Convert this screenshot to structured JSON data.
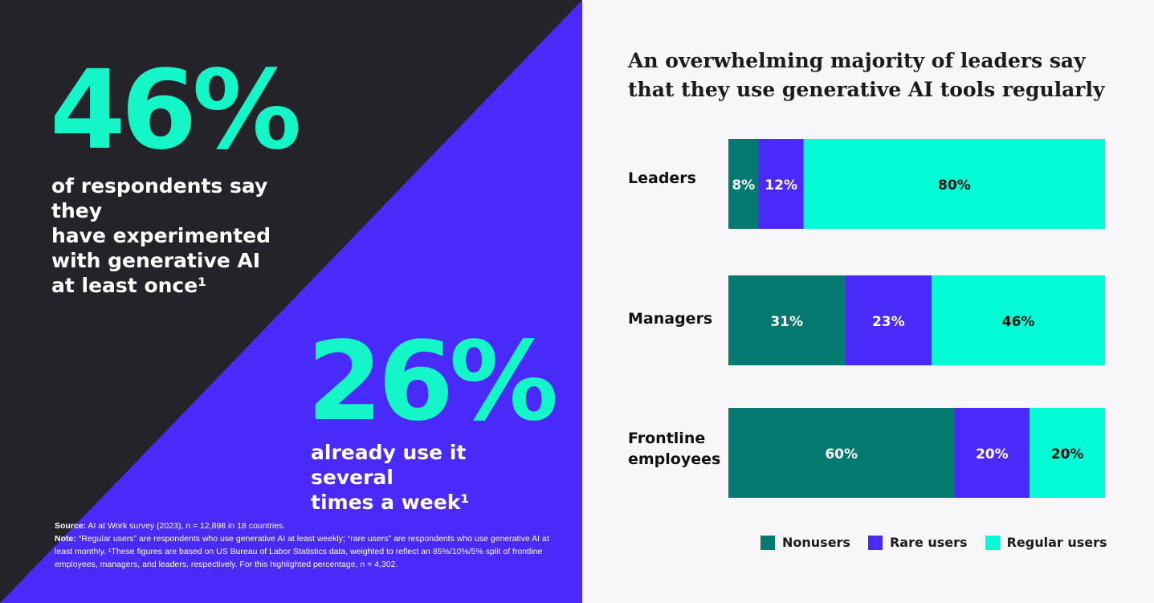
{
  "left": {
    "stat1": {
      "value": "46%",
      "text_lines": [
        "of respondents say they",
        "have experimented",
        "with generative AI",
        "at least once¹"
      ]
    },
    "stat2": {
      "value": "26%",
      "text_lines": [
        "already use it several",
        "times a week¹"
      ]
    },
    "footnote": {
      "source_label": "Source:",
      "source_text": " AI at Work survey (2023), n = 12,898 in 18 countries.",
      "note_label": "Note:",
      "note_text": "  “Regular users” are respondents who use generative AI at least weekly; “rare users” are respondents who use generative AI at least monthly. ¹These figures are based on US Bureau of Labor Statistics data, weighted to reflect an 85%/10%/5% split of frontline employees, managers, and leaders, respectively. For this highlighted percentage, n = 4,302."
    }
  },
  "colors": {
    "dark_bg": "#242329",
    "purple": "#4a2afb",
    "teal": "#03796f",
    "mint": "#03fcd5",
    "light_bg": "#f7f7f9"
  },
  "chart_data": {
    "type": "bar",
    "orientation": "horizontal",
    "stacked": true,
    "normalized_percent": true,
    "title": "An overwhelming majority of leaders say that they use generative AI tools regularly",
    "categories": [
      "Leaders",
      "Managers",
      "Frontline employees"
    ],
    "category_lines": [
      [
        "Leaders"
      ],
      [
        "Managers"
      ],
      [
        "Frontline",
        "employees"
      ]
    ],
    "series": [
      {
        "name": "Nonusers",
        "color": "#03796f",
        "values": [
          8,
          31,
          60
        ],
        "labels": [
          "8%",
          "31%",
          "60%"
        ]
      },
      {
        "name": "Rare users",
        "color": "#4a2afb",
        "values": [
          12,
          23,
          20
        ],
        "labels": [
          "12%",
          "23%",
          "20%"
        ]
      },
      {
        "name": "Regular users",
        "color": "#03fcd5",
        "values": [
          80,
          46,
          20
        ],
        "labels": [
          "80%",
          "46%",
          "20%"
        ]
      }
    ],
    "xlim": [
      0,
      100
    ],
    "legend": "bottom",
    "grid": false
  }
}
